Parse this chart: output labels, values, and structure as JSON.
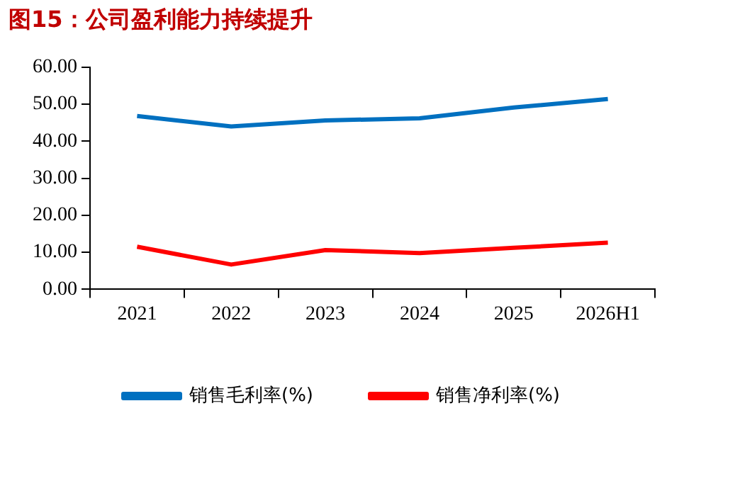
{
  "chart_data": {
    "type": "line",
    "title": "图15：公司盈利能力持续提升",
    "categories": [
      "2021",
      "2022",
      "2023",
      "2024",
      "2025",
      "2026H1"
    ],
    "series": [
      {
        "name": "销售毛利率(%)",
        "color": "#0070c0",
        "values": [
          46.8,
          44.0,
          45.6,
          46.2,
          49.1,
          51.4
        ]
      },
      {
        "name": "销售净利率(%)",
        "color": "#ff0000",
        "values": [
          11.5,
          6.7,
          10.6,
          9.8,
          11.2,
          12.6
        ]
      }
    ],
    "ylim": [
      0,
      60
    ],
    "yticks": [
      {
        "value": 0,
        "label": "0.00"
      },
      {
        "value": 10,
        "label": "10.00"
      },
      {
        "value": 20,
        "label": "20.00"
      },
      {
        "value": 30,
        "label": "30.00"
      },
      {
        "value": 40,
        "label": "40.00"
      },
      {
        "value": 50,
        "label": "50.00"
      },
      {
        "value": 60,
        "label": "60.00"
      }
    ],
    "grid": false,
    "legend": "bottom",
    "marker": "none",
    "line_style": "solid"
  }
}
